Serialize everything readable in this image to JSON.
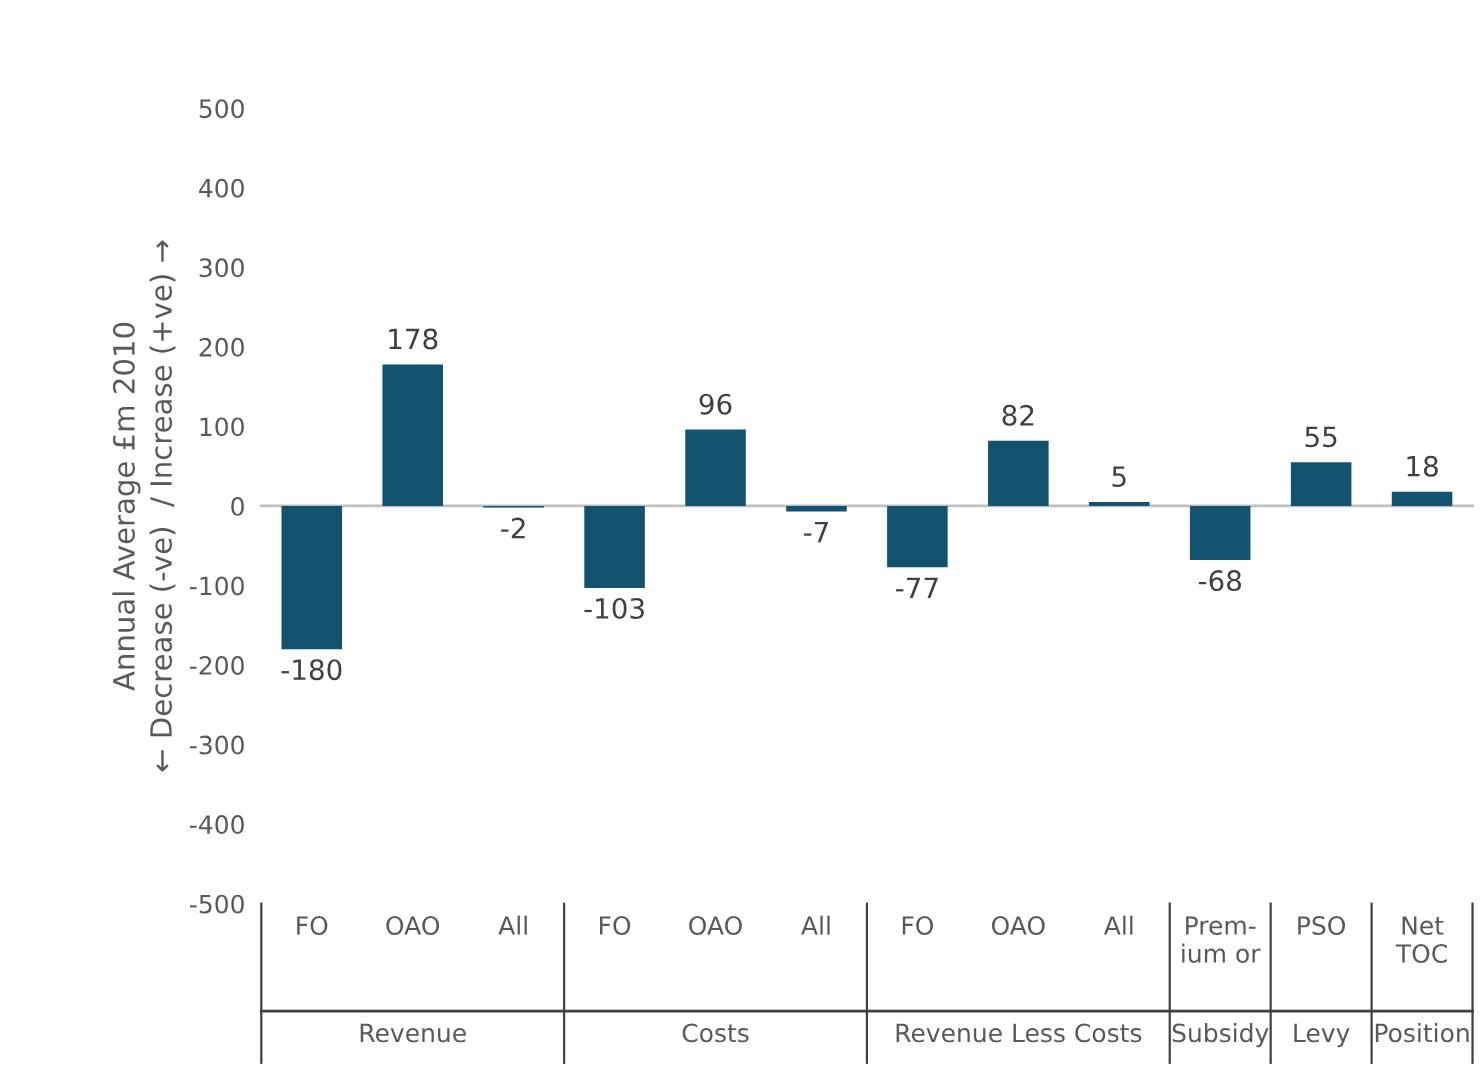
{
  "chart_data": {
    "type": "bar",
    "ylabel": "Annual Average £m 2010\n← Decrease (-ve)  / Increase (+ve) →",
    "categories": [
      "FO",
      "OAO",
      "All",
      "FO",
      "OAO",
      "All",
      "FO",
      "OAO",
      "All",
      "Prem-\nium or",
      "PSO",
      "Net\nTOC"
    ],
    "values": [
      -180,
      178,
      -2,
      -103,
      96,
      -7,
      -77,
      82,
      5,
      -68,
      55,
      18
    ],
    "color": "#145370",
    "ylim": [
      -500,
      500
    ],
    "yticks": [
      -500,
      -400,
      -300,
      -200,
      -100,
      0,
      100,
      200,
      300,
      400,
      500
    ],
    "data_labels": true,
    "grid": false,
    "ref_lines": [
      {
        "axis": "y",
        "value": 0,
        "color": "#bfbfbf"
      }
    ],
    "annotations": [
      "Revenue",
      "Costs",
      "Revenue Less Costs",
      "Subsidy",
      "Levy",
      "Position"
    ]
  }
}
